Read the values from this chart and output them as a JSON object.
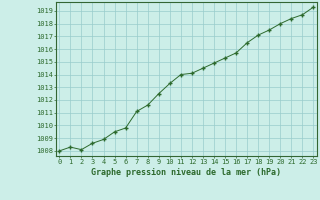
{
  "x": [
    0,
    1,
    2,
    3,
    4,
    5,
    6,
    7,
    8,
    9,
    10,
    11,
    12,
    13,
    14,
    15,
    16,
    17,
    18,
    19,
    20,
    21,
    22,
    23
  ],
  "y": [
    1008.0,
    1008.3,
    1008.1,
    1008.6,
    1008.9,
    1009.5,
    1009.8,
    1011.1,
    1011.6,
    1012.5,
    1013.3,
    1014.0,
    1014.1,
    1014.5,
    1014.9,
    1015.3,
    1015.7,
    1016.5,
    1017.1,
    1017.5,
    1018.0,
    1018.4,
    1018.7,
    1019.3
  ],
  "line_color": "#2d6a2d",
  "marker_color": "#2d6a2d",
  "bg_color": "#cceee8",
  "grid_color": "#99cccc",
  "xlabel": "Graphe pression niveau de la mer (hPa)",
  "xlabel_color": "#2d6a2d",
  "ytick_min": 1008,
  "ytick_max": 1019,
  "xtick_labels": [
    "0",
    "1",
    "2",
    "3",
    "4",
    "5",
    "6",
    "7",
    "8",
    "9",
    "10",
    "11",
    "12",
    "13",
    "14",
    "15",
    "16",
    "17",
    "18",
    "19",
    "20",
    "21",
    "22",
    "23"
  ],
  "ylim": [
    1007.6,
    1019.7
  ],
  "xlim": [
    -0.3,
    23.3
  ]
}
